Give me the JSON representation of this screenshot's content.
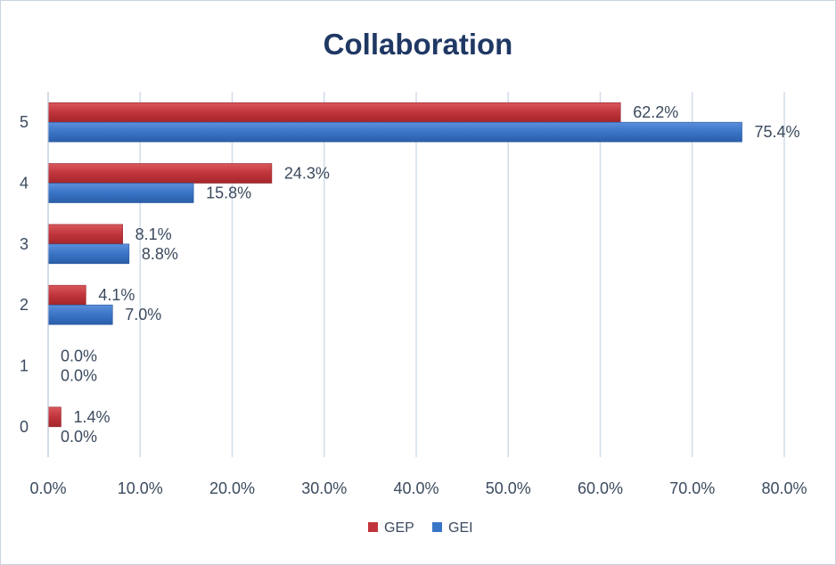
{
  "chart_data": {
    "type": "bar",
    "orientation": "horizontal",
    "title": "Collaboration",
    "categories": [
      "5",
      "4",
      "3",
      "2",
      "1",
      "0"
    ],
    "series": [
      {
        "name": "GEP",
        "color": "#c0353b",
        "values": [
          62.2,
          24.3,
          8.1,
          4.1,
          0.0,
          1.4
        ],
        "labels": [
          "62.2%",
          "24.3%",
          "8.1%",
          "4.1%",
          "0.0%",
          "1.4%"
        ]
      },
      {
        "name": "GEI",
        "color": "#3a74c6",
        "values": [
          75.4,
          15.8,
          8.8,
          7.0,
          0.0,
          0.0
        ],
        "labels": [
          "75.4%",
          "15.8%",
          "8.8%",
          "7.0%",
          "0.0%",
          "0.0%"
        ]
      }
    ],
    "xlim": [
      0,
      80
    ],
    "xticks": [
      0,
      10,
      20,
      30,
      40,
      50,
      60,
      70,
      80
    ],
    "xtick_labels": [
      "0.0%",
      "10.0%",
      "20.0%",
      "30.0%",
      "40.0%",
      "50.0%",
      "60.0%",
      "70.0%",
      "80.0%"
    ],
    "grid": true,
    "legend_position": "bottom"
  }
}
